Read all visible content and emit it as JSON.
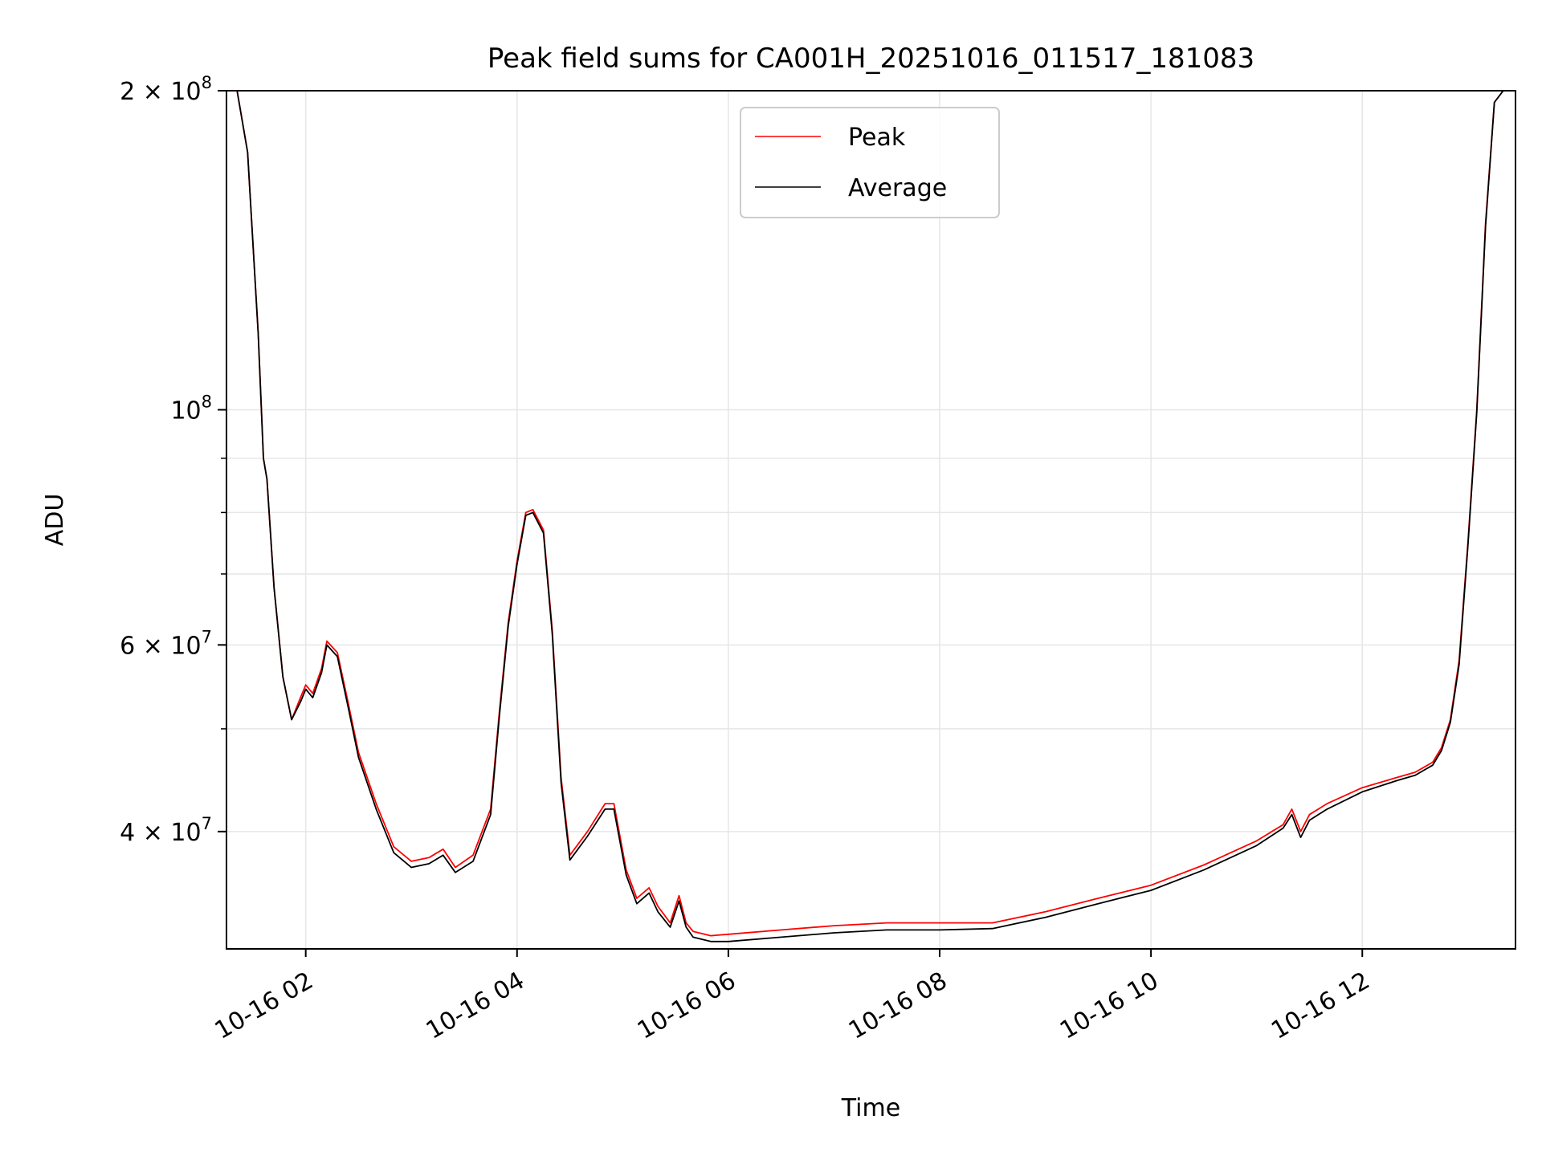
{
  "chart_data": {
    "type": "line",
    "title": "Peak field sums for CA001H_20251016_011517_181083",
    "xlabel": "Time",
    "ylabel": "ADU",
    "yscale": "log",
    "ylim": [
      31000000,
      200000000
    ],
    "xlim": [
      "2025-10-16T01:15",
      "2025-10-16T13:27"
    ],
    "grid": true,
    "legend_position": "top-center",
    "x_ticks": [
      "10-16 02",
      "10-16 04",
      "10-16 06",
      "10-16 08",
      "10-16 10",
      "10-16 12"
    ],
    "y_ticks": [
      {
        "label_base": "2 × 10",
        "label_exp": "8",
        "value": 200000000
      },
      {
        "label_base": "10",
        "label_exp": "8",
        "value": 100000000
      },
      {
        "label_base": "6 × 10",
        "label_exp": "7",
        "value": 60000000
      },
      {
        "label_base": "4 × 10",
        "label_exp": "7",
        "value": 40000000
      }
    ],
    "series": [
      {
        "name": "Peak",
        "color": "#ff0000",
        "x": [
          "01:15",
          "01:21",
          "01:27",
          "01:33",
          "01:36",
          "01:38",
          "01:42",
          "01:47",
          "01:52",
          "01:57",
          "02:00",
          "02:04",
          "02:09",
          "02:12",
          "02:18",
          "02:24",
          "02:30",
          "02:40",
          "02:50",
          "03:00",
          "03:10",
          "03:18",
          "03:25",
          "03:35",
          "03:45",
          "03:50",
          "03:55",
          "04:00",
          "04:05",
          "04:09",
          "04:15",
          "04:20",
          "04:25",
          "04:30",
          "04:40",
          "04:50",
          "04:55",
          "05:02",
          "05:08",
          "05:15",
          "05:20",
          "05:27",
          "05:32",
          "05:36",
          "05:40",
          "05:50",
          "06:00",
          "06:30",
          "07:00",
          "07:30",
          "08:00",
          "08:30",
          "09:00",
          "09:30",
          "10:00",
          "10:30",
          "11:00",
          "11:15",
          "11:20",
          "11:25",
          "11:30",
          "11:40",
          "12:00",
          "12:20",
          "12:30",
          "12:40",
          "12:45",
          "12:50",
          "12:55",
          "13:00",
          "13:05",
          "13:10",
          "13:15",
          "13:20",
          "13:27"
        ],
        "values": [
          200000000,
          200000000,
          175000000,
          118000000,
          90000000,
          86000000,
          68000000,
          56000000,
          51000000,
          53500000,
          55000000,
          54000000,
          57000000,
          60500000,
          59000000,
          53000000,
          47500000,
          42500000,
          38700000,
          37500000,
          37800000,
          38500000,
          37000000,
          38000000,
          42000000,
          52000000,
          63000000,
          72000000,
          80000000,
          80500000,
          77000000,
          62000000,
          45000000,
          38000000,
          40000000,
          42500000,
          42500000,
          36800000,
          34600000,
          35400000,
          34000000,
          32800000,
          34800000,
          32800000,
          32200000,
          31900000,
          32000000,
          32300000,
          32600000,
          32800000,
          32800000,
          32800000,
          33600000,
          34600000,
          35600000,
          37200000,
          39200000,
          40600000,
          42000000,
          40000000,
          41500000,
          42500000,
          44000000,
          45000000,
          45500000,
          46500000,
          48000000,
          51000000,
          58000000,
          75000000,
          100000000,
          150000000,
          195000000,
          200000000,
          200000000
        ]
      },
      {
        "name": "Average",
        "color": "#000000",
        "x": [
          "01:15",
          "01:21",
          "01:27",
          "01:33",
          "01:36",
          "01:38",
          "01:42",
          "01:47",
          "01:52",
          "01:57",
          "02:00",
          "02:04",
          "02:09",
          "02:12",
          "02:18",
          "02:24",
          "02:30",
          "02:40",
          "02:50",
          "03:00",
          "03:10",
          "03:18",
          "03:25",
          "03:35",
          "03:45",
          "03:50",
          "03:55",
          "04:00",
          "04:05",
          "04:09",
          "04:15",
          "04:20",
          "04:25",
          "04:30",
          "04:40",
          "04:50",
          "04:55",
          "05:02",
          "05:08",
          "05:15",
          "05:20",
          "05:27",
          "05:32",
          "05:36",
          "05:40",
          "05:50",
          "06:00",
          "06:30",
          "07:00",
          "07:30",
          "08:00",
          "08:30",
          "09:00",
          "09:30",
          "10:00",
          "10:30",
          "11:00",
          "11:15",
          "11:20",
          "11:25",
          "11:30",
          "11:40",
          "12:00",
          "12:20",
          "12:30",
          "12:40",
          "12:45",
          "12:50",
          "12:55",
          "13:00",
          "13:05",
          "13:10",
          "13:15",
          "13:20",
          "13:27"
        ],
        "values": [
          200000000,
          200000000,
          175000000,
          118000000,
          90000000,
          86000000,
          68000000,
          56000000,
          51000000,
          53000000,
          54500000,
          53500000,
          56500000,
          60000000,
          58500000,
          52500000,
          47000000,
          42000000,
          38200000,
          37000000,
          37300000,
          38000000,
          36600000,
          37500000,
          41500000,
          51500000,
          62500000,
          71500000,
          79500000,
          80000000,
          76500000,
          61500000,
          44500000,
          37600000,
          39600000,
          42000000,
          42000000,
          36400000,
          34200000,
          35000000,
          33600000,
          32500000,
          34400000,
          32500000,
          31800000,
          31500000,
          31500000,
          31800000,
          32100000,
          32300000,
          32300000,
          32400000,
          33200000,
          34200000,
          35200000,
          36800000,
          38800000,
          40300000,
          41500000,
          39500000,
          41000000,
          42000000,
          43600000,
          44700000,
          45200000,
          46200000,
          47700000,
          50700000,
          57500000,
          74500000,
          99500000,
          149000000,
          195000000,
          200000000,
          200000000
        ]
      }
    ]
  }
}
